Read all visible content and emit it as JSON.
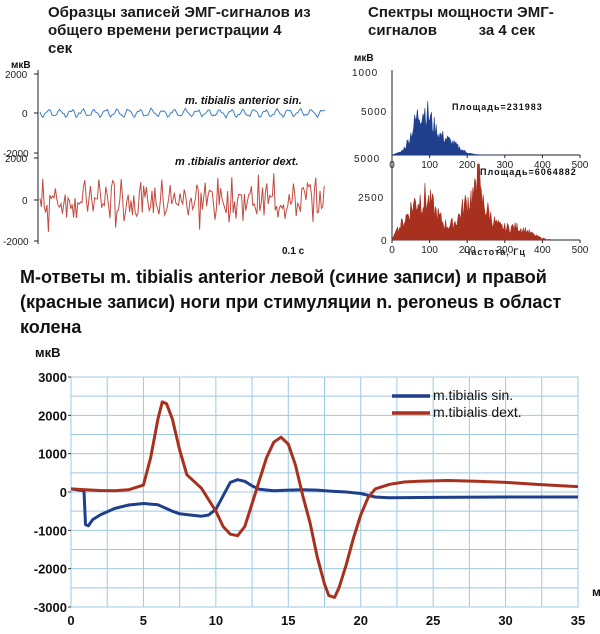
{
  "top_left_title": [
    "Образцы записей ЭМГ-сигналов из",
    "общего     времени регистрации 4",
    "сек"
  ],
  "top_right_title": [
    "Спектры мощности ЭМГ-",
    "сигналов          за 4 сек"
  ],
  "caption": [
    "М-ответы  m. tibialis anterior  левой (синие записи) и правой",
    "(красные записи) ноги при стимуляции n. peroneus  в област",
    "колена"
  ],
  "colors": {
    "blue": "#1f3f8c",
    "red": "#a8301e",
    "lightblue": "#3d7fc0",
    "lightred": "#c24a40",
    "grid": "#9ec8e0"
  },
  "chart_data": [
    {
      "type": "line",
      "title": "",
      "ylabel": "мкВ",
      "ylim": [
        -2000,
        2000
      ],
      "yticks": [
        "2000",
        "0",
        "-2000"
      ],
      "series": [
        {
          "name": "m. tibialis anterior sin.",
          "color": "#3d7fc0",
          "description": "low amplitude EMG trace ~±150"
        }
      ]
    },
    {
      "type": "line",
      "ylim": [
        -2000,
        2000
      ],
      "yticks": [
        "2000",
        "0",
        "-2000"
      ],
      "series": [
        {
          "name": "m .tibialis anterior dext.",
          "color": "#c24a40",
          "description": "high amplitude EMG trace ~±1500"
        }
      ],
      "scale_label": "0.1 c"
    },
    {
      "type": "area",
      "ylabel": "мкВ",
      "ylim": [
        0,
        10000
      ],
      "yticks": [
        "1000",
        "5000",
        "0"
      ],
      "xlim": [
        0,
        500
      ],
      "xticks": [
        "0",
        "100",
        "200",
        "300",
        "400",
        "500"
      ],
      "annotation": "Площадь=231983",
      "color": "#1f3f8c"
    },
    {
      "type": "area",
      "ylim": [
        0,
        5000
      ],
      "yticks": [
        "5000",
        "2500",
        "0"
      ],
      "xlim": [
        0,
        500
      ],
      "xticks": [
        "0",
        "100",
        "200",
        "300",
        "400",
        "500"
      ],
      "xlabel": "Частота, Гц",
      "annotation": "Площадь=6064882",
      "color": "#a8301e"
    },
    {
      "type": "line",
      "ylabel": "мкВ",
      "xlim": [
        0,
        35
      ],
      "ylim": [
        -3000,
        3000
      ],
      "xticks": [
        0,
        5,
        10,
        15,
        20,
        25,
        30,
        35
      ],
      "yticks": [
        3000,
        2000,
        1000,
        0,
        -1000,
        -2000,
        -3000
      ],
      "legend": "top-right",
      "series": [
        {
          "name": "m.tibialis sin.",
          "color": "#1f3f8c",
          "x": [
            0,
            0.9,
            1.0,
            1.2,
            1.5,
            2,
            3,
            4,
            5,
            6,
            7,
            7.5,
            8,
            9,
            9.5,
            10,
            10.5,
            11,
            11.5,
            12,
            12.5,
            13,
            14,
            15,
            16,
            17,
            18,
            19,
            20,
            21,
            22,
            25,
            30,
            35
          ],
          "y": [
            80,
            30,
            -850,
            -880,
            -720,
            -600,
            -430,
            -340,
            -300,
            -330,
            -500,
            -570,
            -590,
            -630,
            -600,
            -450,
            -100,
            250,
            320,
            280,
            160,
            70,
            30,
            50,
            60,
            50,
            20,
            0,
            -40,
            -130,
            -150,
            -140,
            -130,
            -130
          ]
        },
        {
          "name": "m.tibialis dext.",
          "color": "#a8301e",
          "x": [
            0,
            1,
            2,
            3,
            4,
            5,
            5.5,
            6,
            6.3,
            6.6,
            7,
            7.5,
            8,
            9,
            10,
            10.5,
            11,
            11.5,
            12,
            12.5,
            13,
            13.5,
            14,
            14.5,
            15,
            15.5,
            16,
            16.5,
            17,
            17.5,
            17.8,
            18.2,
            18.5,
            19,
            19.5,
            20,
            20.5,
            21,
            22,
            23,
            24,
            25,
            26,
            28,
            30,
            32,
            34,
            35
          ],
          "y": [
            80,
            60,
            40,
            30,
            60,
            180,
            900,
            1900,
            2350,
            2300,
            1900,
            1100,
            450,
            100,
            -500,
            -900,
            -1100,
            -1140,
            -900,
            -300,
            300,
            900,
            1300,
            1430,
            1250,
            700,
            -100,
            -800,
            -1700,
            -2400,
            -2700,
            -2750,
            -2500,
            -1900,
            -1200,
            -600,
            -150,
            80,
            200,
            260,
            280,
            290,
            300,
            280,
            250,
            200,
            160,
            140
          ]
        }
      ]
    }
  ]
}
